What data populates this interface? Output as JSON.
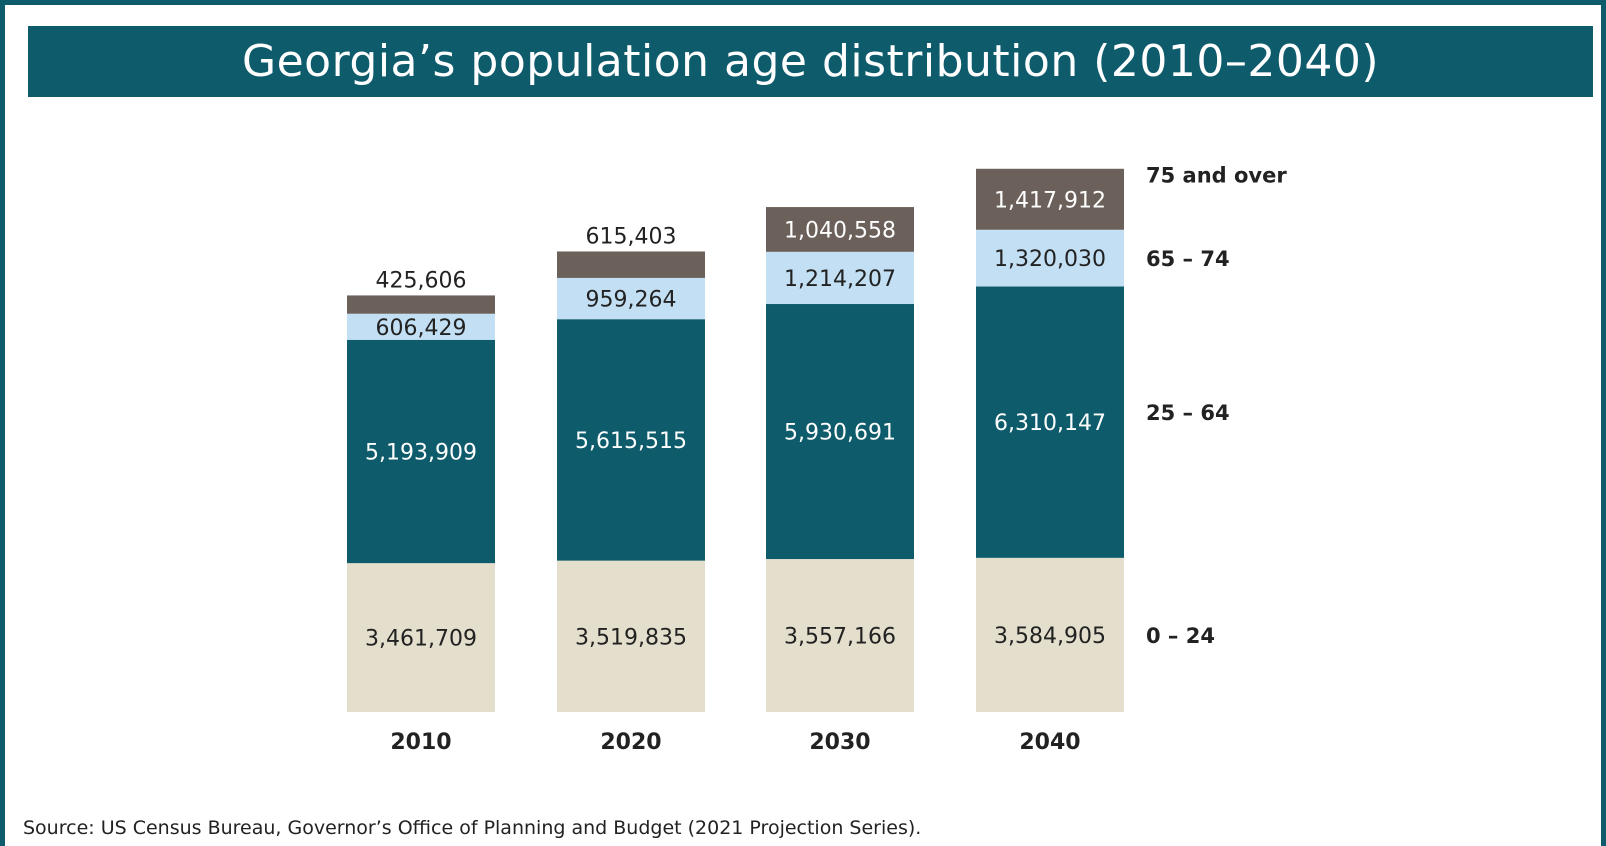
{
  "title": "Georgia’s population age distribution (2010–2040)",
  "source": "Source: US Census Bureau, Governor’s Office of Planning and Budget (2021 Projection Series).",
  "colors": {
    "frame": "#0e5b6b",
    "age_0_24": "#e4dfcd",
    "age_25_64": "#0e5b6b",
    "age_65_74": "#c2dff3",
    "age_75_over": "#6b605a"
  },
  "chart_data": {
    "type": "bar",
    "stacked": true,
    "title": "Georgia’s population age distribution (2010–2040)",
    "categories": [
      "2010",
      "2020",
      "2030",
      "2040"
    ],
    "series": [
      {
        "name": "0 – 24",
        "values": [
          3461709,
          3519835,
          3557166,
          3584905
        ],
        "labels": [
          "3,461,709",
          "3,519,835",
          "3,557,166",
          "3,584,905"
        ],
        "color": "#e4dfcd",
        "label_color": "#222222"
      },
      {
        "name": "25 – 64",
        "values": [
          5193909,
          5615515,
          5930691,
          6310147
        ],
        "labels": [
          "5,193,909",
          "5,615,515",
          "5,930,691",
          "6,310,147"
        ],
        "color": "#0e5b6b",
        "label_color": "#ffffff"
      },
      {
        "name": "65 – 74",
        "values": [
          606429,
          959264,
          1214207,
          1320030
        ],
        "labels": [
          "606,429",
          "959,264",
          "1,214,207",
          "1,320,030"
        ],
        "color": "#c2dff3",
        "label_color": "#222222"
      },
      {
        "name": "75 and over",
        "values": [
          425606,
          615403,
          1040558,
          1417912
        ],
        "labels": [
          "425,606",
          "615,403",
          "1,040,558",
          "1,417,912"
        ],
        "color": "#6b605a",
        "label_color": "#ffffff"
      }
    ],
    "grid": false,
    "legend": "right, aligned to last bar"
  }
}
